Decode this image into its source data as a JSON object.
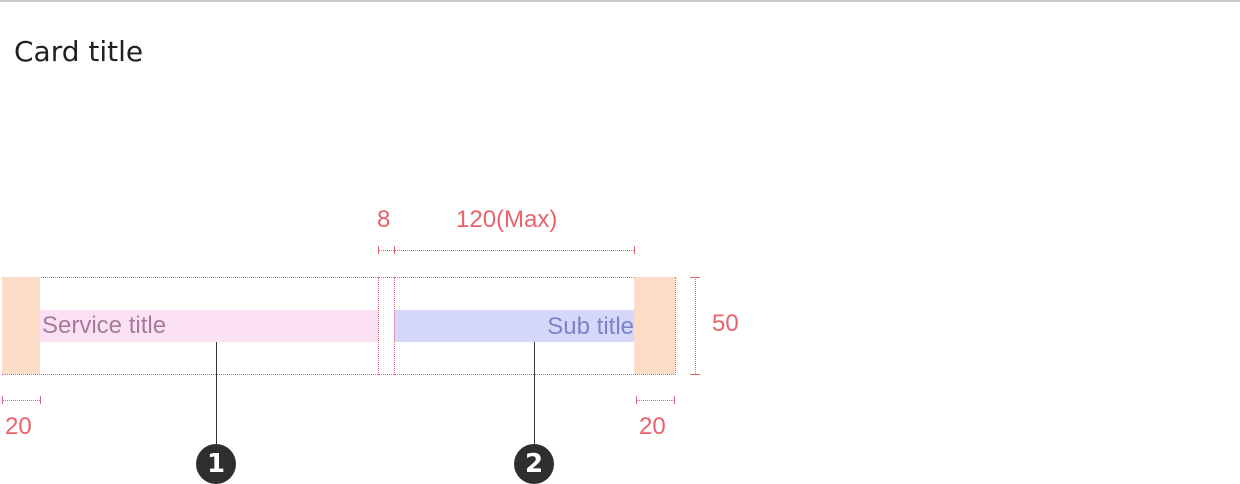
{
  "page": {
    "title": "Card title"
  },
  "card": {
    "service_title": "Service title",
    "sub_title": "Sub title"
  },
  "specs": {
    "gap": "8",
    "sub_max": "120(Max)",
    "height": "50",
    "padding_left": "20",
    "padding_right": "20"
  },
  "callouts": [
    {
      "number": "1"
    },
    {
      "number": "2"
    }
  ],
  "colors": {
    "spec_line": "#e8636b",
    "padding_fill": "#fcdcc6",
    "service_fill": "#fce1f5",
    "service_text": "#a77a9c",
    "sub_fill": "#d5d8fb",
    "sub_text": "#7f82c8",
    "marker": "#2f2f2f"
  }
}
